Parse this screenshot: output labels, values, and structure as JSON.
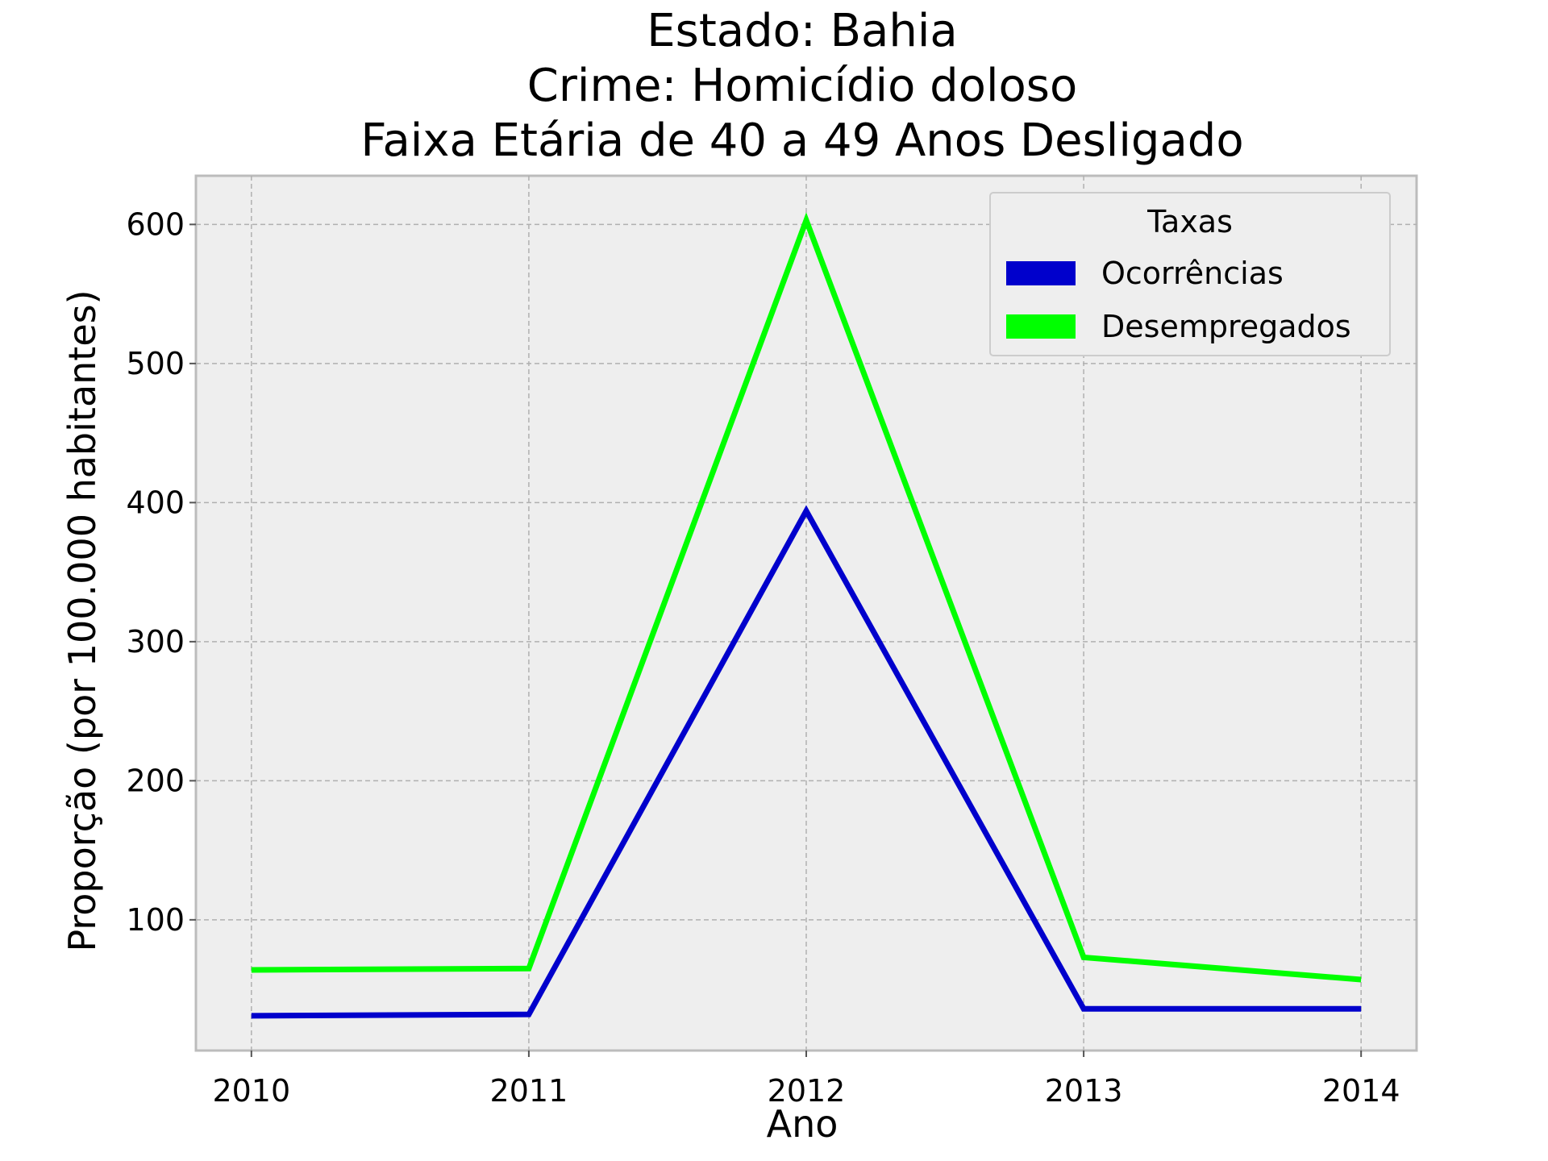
{
  "chart_data": {
    "type": "line",
    "title_lines": [
      "Estado: Bahia",
      "Crime: Homicídio doloso",
      "Faixa Etária de 40 a 49 Anos   Desligado"
    ],
    "xlabel": "Ano",
    "ylabel": "Proporção (por 100.000 habitantes)",
    "x": [
      2010,
      2011,
      2012,
      2013,
      2014
    ],
    "x_tick_labels": [
      "2010",
      "2011",
      "2012",
      "2013",
      "2014"
    ],
    "y_ticks": [
      100,
      200,
      300,
      400,
      500,
      600
    ],
    "y_tick_labels": [
      "100",
      "200",
      "300",
      "400",
      "500",
      "600"
    ],
    "xlim": [
      2009.8,
      2014.2
    ],
    "ylim": [
      6,
      635
    ],
    "grid": true,
    "legend": {
      "title": "Taxas",
      "placement": "upper-right"
    },
    "series": [
      {
        "name": "Ocorrências",
        "color": "#0000cc",
        "values": [
          31,
          32,
          394,
          36,
          36
        ]
      },
      {
        "name": "Desempregados",
        "color": "#00ff00",
        "values": [
          64,
          65,
          603,
          73,
          57
        ]
      }
    ]
  }
}
